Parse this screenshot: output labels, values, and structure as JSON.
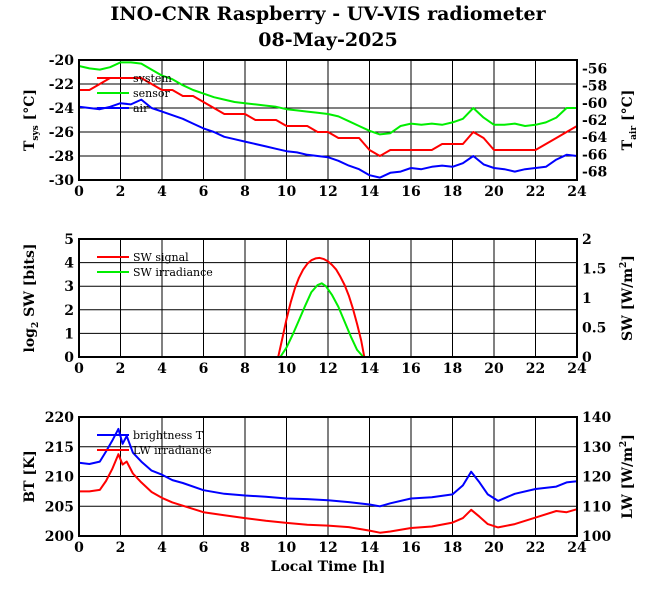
{
  "chart_data": [
    {
      "type": "line",
      "title": "INO-CNR Raspberry - UV-VIS radiometer",
      "subtitle": "08-May-2025",
      "xlabel": "",
      "xlim": [
        0,
        24
      ],
      "x_ticks": [
        "0",
        "2",
        "4",
        "6",
        "8",
        "10",
        "12",
        "14",
        "16",
        "18",
        "20",
        "22",
        "24"
      ],
      "y_left": {
        "label": "T",
        "sub": "sys",
        "unit": " [°C]",
        "lim": [
          -30,
          -20
        ],
        "ticks": [
          "-30",
          "-28",
          "-26",
          "-24",
          "-22",
          "-20"
        ]
      },
      "y_right": {
        "label": "T",
        "sub": "air",
        "unit": " [°C]",
        "lim": [
          -69,
          -55
        ],
        "ticks": [
          "-68",
          "-66",
          "-64",
          "-62",
          "-60",
          "-58",
          "-56"
        ]
      },
      "grid": true,
      "legend": "top-left",
      "series": [
        {
          "name": "system",
          "color": "#ff0000",
          "axis": "left",
          "x": [
            0,
            0.5,
            1,
            1.5,
            2,
            2.5,
            3,
            3.5,
            4,
            4.5,
            5,
            5.5,
            6,
            6.5,
            7,
            7.5,
            8,
            8.5,
            9,
            9.5,
            10,
            10.5,
            11,
            11.5,
            12,
            12.5,
            13,
            13.5,
            14,
            14.5,
            15,
            15.5,
            16,
            16.5,
            17,
            17.5,
            18,
            18.5,
            19,
            19.5,
            20,
            20.5,
            21,
            21.5,
            22,
            22.5,
            23,
            23.5,
            24
          ],
          "y": [
            -22.5,
            -22.5,
            -22.0,
            -21.5,
            -21.5,
            -21.5,
            -21.5,
            -22.0,
            -22.5,
            -22.5,
            -23.0,
            -23.0,
            -23.5,
            -24.0,
            -24.5,
            -24.5,
            -24.5,
            -25.0,
            -25.0,
            -25.0,
            -25.5,
            -25.5,
            -25.5,
            -26.0,
            -26.0,
            -26.5,
            -26.5,
            -26.5,
            -27.5,
            -28.0,
            -27.5,
            -27.5,
            -27.5,
            -27.5,
            -27.5,
            -27.0,
            -27.0,
            -27.0,
            -26.0,
            -26.5,
            -27.5,
            -27.5,
            -27.5,
            -27.5,
            -27.5,
            -27.0,
            -26.5,
            -26.0,
            -25.5
          ]
        },
        {
          "name": "sensor",
          "color": "#00ee00",
          "axis": "left",
          "x": [
            0,
            0.5,
            1,
            1.5,
            2,
            2.5,
            3,
            3.5,
            4,
            4.5,
            5,
            5.5,
            6,
            6.5,
            7,
            7.5,
            8,
            8.5,
            9,
            9.5,
            10,
            10.5,
            11,
            11.5,
            12,
            12.5,
            13,
            13.5,
            14,
            14.5,
            15,
            15.5,
            16,
            16.5,
            17,
            17.5,
            18,
            18.5,
            19,
            19.5,
            20,
            20.5,
            21,
            21.5,
            22,
            22.5,
            23,
            23.5,
            24
          ],
          "y": [
            -20.5,
            -20.7,
            -20.8,
            -20.6,
            -20.2,
            -20.2,
            -20.3,
            -20.8,
            -21.3,
            -21.6,
            -22.1,
            -22.5,
            -22.8,
            -23.1,
            -23.3,
            -23.5,
            -23.6,
            -23.7,
            -23.8,
            -23.9,
            -24.1,
            -24.2,
            -24.3,
            -24.4,
            -24.5,
            -24.7,
            -25.1,
            -25.5,
            -25.9,
            -26.2,
            -26.1,
            -25.5,
            -25.3,
            -25.4,
            -25.3,
            -25.4,
            -25.2,
            -24.9,
            -24.0,
            -24.8,
            -25.4,
            -25.4,
            -25.3,
            -25.5,
            -25.4,
            -25.2,
            -24.8,
            -24.0,
            -24.0
          ]
        },
        {
          "name": "air",
          "color": "#0000ff",
          "axis": "left",
          "x": [
            0,
            0.5,
            1,
            1.5,
            2,
            2.5,
            3,
            3.5,
            4,
            4.5,
            5,
            5.5,
            6,
            6.5,
            7,
            7.5,
            8,
            8.5,
            9,
            9.5,
            10,
            10.5,
            11,
            11.5,
            12,
            12.5,
            13,
            13.5,
            14,
            14.5,
            15,
            15.5,
            16,
            16.5,
            17,
            17.5,
            18,
            18.5,
            19,
            19.5,
            20,
            20.5,
            21,
            21.5,
            22,
            22.5,
            23,
            23.5,
            24
          ],
          "y": [
            -23.9,
            -24.0,
            -24.1,
            -23.9,
            -23.6,
            -23.7,
            -23.3,
            -24.0,
            -24.3,
            -24.6,
            -24.9,
            -25.3,
            -25.7,
            -26.0,
            -26.4,
            -26.6,
            -26.8,
            -27.0,
            -27.2,
            -27.4,
            -27.6,
            -27.7,
            -27.9,
            -28.0,
            -28.1,
            -28.4,
            -28.8,
            -29.1,
            -29.6,
            -29.8,
            -29.4,
            -29.3,
            -29.0,
            -29.1,
            -28.9,
            -28.8,
            -28.9,
            -28.6,
            -28.0,
            -28.7,
            -29.0,
            -29.1,
            -29.3,
            -29.1,
            -29.0,
            -28.9,
            -28.3,
            -27.9,
            -28.0
          ]
        }
      ]
    },
    {
      "type": "line",
      "xlabel": "",
      "xlim": [
        0,
        24
      ],
      "x_ticks": [
        "0",
        "2",
        "4",
        "6",
        "8",
        "10",
        "12",
        "14",
        "16",
        "18",
        "20",
        "22",
        "24"
      ],
      "y_left": {
        "label": "log",
        "sub": "2",
        "unit": " SW [bits]",
        "lim": [
          0,
          5
        ],
        "ticks": [
          "0",
          "1",
          "2",
          "3",
          "4",
          "5"
        ]
      },
      "y_right": {
        "label": "SW [W/m",
        "sup": "2",
        "unit": "]",
        "lim": [
          0,
          2
        ],
        "ticks": [
          "0",
          "0.5",
          "1",
          "1.5",
          "2"
        ]
      },
      "grid": true,
      "legend": "top-left",
      "series": [
        {
          "name": "SW signal",
          "color": "#ff0000",
          "axis": "left",
          "x": [
            0,
            9.6,
            9.8,
            10.0,
            10.2,
            10.4,
            10.6,
            10.8,
            11.0,
            11.2,
            11.4,
            11.6,
            11.8,
            12.0,
            12.2,
            12.4,
            12.6,
            12.8,
            13.0,
            13.2,
            13.4,
            13.6,
            13.75,
            24
          ],
          "y": [
            0,
            0,
            0.8,
            1.6,
            2.3,
            2.9,
            3.35,
            3.7,
            3.95,
            4.1,
            4.18,
            4.2,
            4.15,
            4.05,
            3.9,
            3.7,
            3.4,
            3.05,
            2.6,
            2.05,
            1.4,
            0.7,
            0,
            0
          ]
        },
        {
          "name": "SW irradiance",
          "color": "#00ee00",
          "axis": "right",
          "x": [
            0,
            9.7,
            10.0,
            10.3,
            10.6,
            10.9,
            11.2,
            11.5,
            11.7,
            11.9,
            12.2,
            12.5,
            12.8,
            13.1,
            13.4,
            13.7,
            24
          ],
          "y": [
            0,
            0,
            0.16,
            0.38,
            0.62,
            0.87,
            1.1,
            1.22,
            1.25,
            1.2,
            1.05,
            0.85,
            0.6,
            0.35,
            0.12,
            0,
            0
          ]
        }
      ]
    },
    {
      "type": "line",
      "xlabel": "Local Time [h]",
      "xlim": [
        0,
        24
      ],
      "x_ticks": [
        "0",
        "2",
        "4",
        "6",
        "8",
        "10",
        "12",
        "14",
        "16",
        "18",
        "20",
        "22",
        "24"
      ],
      "y_left": {
        "label": "BT [K]",
        "lim": [
          200,
          220
        ],
        "ticks": [
          "200",
          "205",
          "210",
          "215",
          "220"
        ]
      },
      "y_right": {
        "label": "LW [W/m",
        "sup": "2",
        "unit": "]",
        "lim": [
          100,
          140
        ],
        "ticks": [
          "100",
          "110",
          "120",
          "130",
          "140"
        ]
      },
      "grid": true,
      "legend": "top-left",
      "series": [
        {
          "name": "brightness T",
          "color": "#0000ff",
          "axis": "left",
          "x": [
            0,
            0.5,
            1.0,
            1.3,
            1.6,
            1.9,
            2.1,
            2.3,
            2.6,
            3.0,
            3.5,
            4,
            4.5,
            5,
            6,
            7,
            8,
            9,
            10,
            11,
            12,
            13,
            14,
            14.5,
            15,
            16,
            17,
            18,
            18.5,
            18.9,
            19.3,
            19.7,
            20.2,
            21,
            22,
            23,
            23.5,
            24
          ],
          "y": [
            212.3,
            212.1,
            212.5,
            214.2,
            216.0,
            218.0,
            215.5,
            216.8,
            214.0,
            212.5,
            211.0,
            210.3,
            209.4,
            208.9,
            207.7,
            207.1,
            206.8,
            206.6,
            206.3,
            206.2,
            206.0,
            205.7,
            205.3,
            205.0,
            205.5,
            206.3,
            206.5,
            207.0,
            208.5,
            210.8,
            209.0,
            207.0,
            205.9,
            207.1,
            207.9,
            208.3,
            209.0,
            209.2
          ]
        },
        {
          "name": "LW irradiance",
          "color": "#ff0000",
          "axis": "right",
          "x": [
            0,
            0.5,
            1.0,
            1.3,
            1.6,
            1.9,
            2.1,
            2.3,
            2.6,
            3.0,
            3.5,
            4,
            4.5,
            5,
            6,
            7,
            8,
            9,
            10,
            11,
            12,
            13,
            14,
            14.5,
            15,
            16,
            17,
            18,
            18.5,
            18.9,
            19.3,
            19.7,
            20.2,
            21,
            22,
            23,
            23.5,
            24
          ],
          "y": [
            115.0,
            115.0,
            115.5,
            118.5,
            122.5,
            127.5,
            124.0,
            125.0,
            121.0,
            118.0,
            114.8,
            112.8,
            111.3,
            110.2,
            108.0,
            107.0,
            106.0,
            105.1,
            104.4,
            103.8,
            103.5,
            103.0,
            101.8,
            101.1,
            101.5,
            102.7,
            103.2,
            104.5,
            106.0,
            108.8,
            106.5,
            104.0,
            102.9,
            104.0,
            106.2,
            108.4,
            108.0,
            109.0
          ]
        }
      ]
    }
  ]
}
